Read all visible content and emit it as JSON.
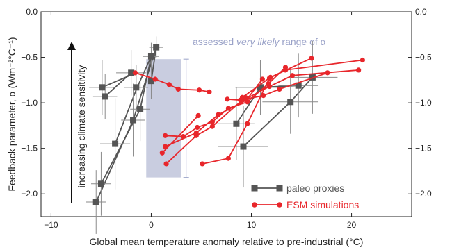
{
  "chart_data": {
    "type": "line",
    "xlabel": "Global mean temperature anomaly relative to pre-industrial (°C)",
    "ylabel": "Feedback parameter, α (Wm⁻²°C⁻¹)",
    "xlim": [
      -11,
      26
    ],
    "ylim": [
      -2.25,
      0.0
    ],
    "x_ticks": [
      -10,
      0,
      10,
      20
    ],
    "x_tick_labels": [
      "−10",
      "0",
      "10",
      "20"
    ],
    "y_ticks": [
      0.0,
      -0.5,
      -1.0,
      -1.5,
      -2.0
    ],
    "y_tick_labels": [
      "0.0",
      "−0.5",
      "−1.0",
      "−1.5",
      "−2.0"
    ],
    "arrow_label": "increasing climate sensitivity",
    "assessed_range": {
      "label_prefix": "assessed ",
      "label_italic": "very likely",
      "label_suffix": " range of α",
      "x_range": [
        -0.5,
        3.0
      ],
      "y_range": [
        -1.82,
        -0.52
      ],
      "y_whisker": [
        -1.82,
        -0.52
      ],
      "color": "#c9cde0",
      "text_color": "#9aa2c8"
    },
    "legend": [
      {
        "name": "paleo proxies",
        "color": "#555555",
        "marker": "square"
      },
      {
        "name": "ESM simulations",
        "color": "#e8262b",
        "marker": "circle"
      }
    ],
    "paleo_proxies": {
      "color": "#555555",
      "lines": [
        [
          [
            -5.5,
            -2.09
          ],
          [
            -1.8,
            -1.19
          ],
          [
            0.5,
            -0.39
          ]
        ],
        [
          [
            -5,
            -1.89
          ],
          [
            -1.1,
            -1.07
          ],
          [
            0,
            -0.49
          ]
        ],
        [
          [
            -3.6,
            -1.45
          ],
          [
            -1.4,
            -0.83
          ],
          [
            0,
            -0.49
          ]
        ],
        [
          [
            -4.6,
            -0.93
          ],
          [
            -2,
            -0.67
          ]
        ],
        [
          [
            -4.9,
            -0.83
          ],
          [
            -1.5,
            -0.67
          ]
        ],
        [
          [
            0,
            -0.76
          ],
          [
            0.5,
            -0.39
          ]
        ],
        [
          [
            8.5,
            -1.23
          ],
          [
            10.9,
            -0.83
          ],
          [
            14.7,
            -0.81
          ]
        ],
        [
          [
            9.2,
            -1.48
          ],
          [
            13.9,
            -0.99
          ],
          [
            16.1,
            -0.72
          ]
        ]
      ],
      "points": [
        {
          "x": -5.5,
          "y": -2.09,
          "xerr": 1.0,
          "yerr": 0.35
        },
        {
          "x": -5.0,
          "y": -1.89,
          "xerr": 1.0,
          "yerr": 0.35
        },
        {
          "x": -4.9,
          "y": -0.83,
          "xerr": 1.3,
          "yerr": 0.3
        },
        {
          "x": -4.6,
          "y": -0.93,
          "xerr": 1.2,
          "yerr": 0.25
        },
        {
          "x": -3.6,
          "y": -1.45,
          "xerr": 1.5,
          "yerr": 0.5
        },
        {
          "x": -2.0,
          "y": -0.67,
          "xerr": 1.5,
          "yerr": 0.25
        },
        {
          "x": -1.8,
          "y": -1.19,
          "xerr": 1.2,
          "yerr": 0.4
        },
        {
          "x": -1.5,
          "y": -0.83,
          "xerr": 1.2,
          "yerr": 0.25
        },
        {
          "x": -1.1,
          "y": -1.07,
          "xerr": 1.0,
          "yerr": 0.35
        },
        {
          "x": 0.0,
          "y": -0.49,
          "xerr": 0.8,
          "yerr": 0.15
        },
        {
          "x": 0.0,
          "y": -0.76,
          "xerr": 0.8,
          "yerr": 0.2
        },
        {
          "x": 0.5,
          "y": -0.39,
          "xerr": 0.7,
          "yerr": 0.12
        },
        {
          "x": 8.5,
          "y": -1.23,
          "xerr": 1.8,
          "yerr": 0.4
        },
        {
          "x": 9.2,
          "y": -1.48,
          "xerr": 2.5,
          "yerr": 0.45
        },
        {
          "x": 10.9,
          "y": -0.83,
          "xerr": 2.5,
          "yerr": 0.3
        },
        {
          "x": 13.9,
          "y": -0.99,
          "xerr": 2.8,
          "yerr": 0.35
        },
        {
          "x": 14.7,
          "y": -0.81,
          "xerr": 2.0,
          "yerr": 0.35
        },
        {
          "x": 16.1,
          "y": -0.72,
          "xerr": 2.5,
          "yerr": 0.4
        }
      ]
    },
    "esm_simulations": {
      "color": "#e8262b",
      "series": [
        [
          [
            -1.6,
            -0.67
          ],
          [
            0.4,
            -0.74
          ],
          [
            1.8,
            -0.8
          ],
          [
            2.7,
            -0.85
          ],
          [
            4.8,
            -0.86
          ],
          [
            5.8,
            -0.88
          ]
        ],
        [
          [
            7.6,
            -0.96
          ],
          [
            8.9,
            -0.97
          ],
          [
            11.2,
            -0.92
          ],
          [
            12.8,
            -0.85
          ],
          [
            17.6,
            -0.67
          ]
        ],
        [
          [
            9.1,
            -0.94
          ],
          [
            11.9,
            -0.72
          ],
          [
            16.0,
            -0.51
          ]
        ],
        [
          [
            9.4,
            -0.96
          ],
          [
            11.8,
            -0.82
          ],
          [
            14.1,
            -0.7
          ],
          [
            20.7,
            -0.64
          ]
        ],
        [
          [
            5.1,
            -1.67
          ],
          [
            7.7,
            -1.61
          ],
          [
            9.6,
            -1.23
          ],
          [
            11.8,
            -0.73
          ],
          [
            13.4,
            -0.64
          ],
          [
            21.1,
            -0.53
          ]
        ],
        [
          [
            1.4,
            -1.36
          ],
          [
            3.2,
            -1.37
          ],
          [
            4.6,
            -1.27
          ],
          [
            6.1,
            -1.21
          ],
          [
            7.7,
            -1.06
          ],
          [
            9.6,
            -0.99
          ],
          [
            11.7,
            -0.79
          ],
          [
            13.4,
            -0.61
          ]
        ],
        [
          [
            1.4,
            -1.48
          ],
          [
            4.5,
            -1.33
          ],
          [
            6.7,
            -1.13
          ],
          [
            9.5,
            -0.97
          ],
          [
            11.1,
            -0.74
          ]
        ],
        [
          [
            1.1,
            -1.55
          ],
          [
            4.7,
            -1.14
          ]
        ],
        [
          [
            1.5,
            -1.67
          ],
          [
            4.5,
            -1.36
          ],
          [
            6.1,
            -1.26
          ],
          [
            9.4,
            -0.94
          ]
        ]
      ]
    }
  }
}
